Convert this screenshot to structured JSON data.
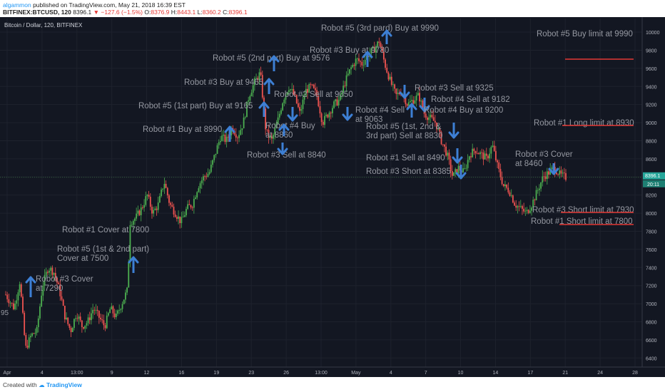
{
  "header": {
    "author": "algammon",
    "published": "published on TradingView.com, May 21, 2018 16:39 EST",
    "symbol": "BITFINEX:BTCUSD, 120",
    "last": "8396.1",
    "change": "−127.6 (−1.5%)",
    "ohlc_o_label": "O:",
    "ohlc_o": "8376.9",
    "ohlc_h_label": "H:",
    "ohlc_h": "8443.1",
    "ohlc_l_label": "L:",
    "ohlc_l": "8360.2",
    "ohlc_c_label": "C:",
    "ohlc_c": "8396.1"
  },
  "footer": {
    "created_with": "Created with",
    "brand": "TradingView"
  },
  "chart_data": {
    "type": "candlestick",
    "title": "Bitcoin / Dollar, 120, BITFINEX",
    "ylim": [
      6300,
      10150
    ],
    "y_ticks": [
      6400,
      6600,
      6800,
      7000,
      7200,
      7400,
      7600,
      7800,
      8000,
      8200,
      8400,
      8600,
      8800,
      9000,
      9200,
      9400,
      9600,
      9800,
      10000
    ],
    "x_tick_labels": [
      "Apr",
      "4",
      "13:00",
      "9",
      "12",
      "16",
      "19",
      "23",
      "26",
      "13:00",
      "May",
      "4",
      "7",
      "10",
      "14",
      "17",
      "21",
      "24",
      "28"
    ],
    "last_price": {
      "value": "8396.1",
      "timer": "20:11"
    },
    "price_path": [
      [
        0,
        7100
      ],
      [
        3,
        6950
      ],
      [
        5,
        7250
      ],
      [
        7,
        6500
      ],
      [
        9,
        6650
      ],
      [
        11,
        6700
      ],
      [
        13,
        7200
      ],
      [
        15,
        7400
      ],
      [
        17,
        7350
      ],
      [
        19,
        7150
      ],
      [
        21,
        6850
      ],
      [
        23,
        6700
      ],
      [
        25,
        6900
      ],
      [
        27,
        6750
      ],
      [
        29,
        6800
      ],
      [
        31,
        6950
      ],
      [
        33,
        6850
      ],
      [
        35,
        6750
      ],
      [
        37,
        6950
      ],
      [
        39,
        6850
      ],
      [
        41,
        7000
      ],
      [
        43,
        7150
      ],
      [
        44,
        7900
      ],
      [
        46,
        7950
      ],
      [
        48,
        8050
      ],
      [
        50,
        8200
      ],
      [
        52,
        8000
      ],
      [
        54,
        8100
      ],
      [
        56,
        8350
      ],
      [
        58,
        8100
      ],
      [
        60,
        8000
      ],
      [
        62,
        7900
      ],
      [
        64,
        8050
      ],
      [
        66,
        8100
      ],
      [
        68,
        8300
      ],
      [
        70,
        8400
      ],
      [
        72,
        8450
      ],
      [
        74,
        8650
      ],
      [
        76,
        8850
      ],
      [
        78,
        8800
      ],
      [
        80,
        8950
      ],
      [
        82,
        8850
      ],
      [
        84,
        9000
      ],
      [
        86,
        9300
      ],
      [
        88,
        9450
      ],
      [
        90,
        9550
      ],
      [
        92,
        8900
      ],
      [
        94,
        8800
      ],
      [
        96,
        9000
      ],
      [
        98,
        9250
      ],
      [
        100,
        9400
      ],
      [
        102,
        9300
      ],
      [
        104,
        9100
      ],
      [
        106,
        9350
      ],
      [
        108,
        9400
      ],
      [
        110,
        9300
      ],
      [
        112,
        9000
      ],
      [
        114,
        9100
      ],
      [
        116,
        9200
      ],
      [
        118,
        9250
      ],
      [
        120,
        9450
      ],
      [
        122,
        9600
      ],
      [
        124,
        9700
      ],
      [
        126,
        9650
      ],
      [
        128,
        9750
      ],
      [
        130,
        9800
      ],
      [
        132,
        9900
      ],
      [
        134,
        9650
      ],
      [
        136,
        9450
      ],
      [
        138,
        9300
      ],
      [
        140,
        9350
      ],
      [
        142,
        9200
      ],
      [
        144,
        9250
      ],
      [
        146,
        9300
      ],
      [
        148,
        9100
      ],
      [
        150,
        9050
      ],
      [
        152,
        9000
      ],
      [
        154,
        8800
      ],
      [
        156,
        8650
      ],
      [
        158,
        8400
      ],
      [
        160,
        8500
      ],
      [
        162,
        8450
      ],
      [
        164,
        8650
      ],
      [
        166,
        8700
      ],
      [
        168,
        8650
      ],
      [
        170,
        8600
      ],
      [
        172,
        8750
      ],
      [
        174,
        8500
      ],
      [
        176,
        8300
      ],
      [
        178,
        8250
      ],
      [
        180,
        8100
      ],
      [
        182,
        8050
      ],
      [
        184,
        8000
      ],
      [
        186,
        8100
      ],
      [
        188,
        8250
      ],
      [
        190,
        8400
      ],
      [
        192,
        8450
      ],
      [
        194,
        8500
      ],
      [
        196,
        8420
      ],
      [
        198,
        8396
      ]
    ],
    "annotations": [
      {
        "label": "Robot #3 Cover\nat 7290",
        "arrow": "up",
        "price": 7290
      },
      {
        "label": "Robot #5 (1st & 2nd part)\nCover at 7500",
        "arrow": "up",
        "price": 7500
      },
      {
        "label": "Robot #1 Cover at 7800",
        "arrow": "none",
        "price": 7800
      },
      {
        "label": "Robot #1 Buy at 8990",
        "arrow": "up",
        "price": 8990
      },
      {
        "label": "Robot #5 (1st part) Buy at 9165",
        "arrow": "up",
        "price": 9165
      },
      {
        "label": "Robot #3 Buy at 9465",
        "arrow": "up",
        "price": 9465
      },
      {
        "label": "Robot #5 (2nd part) Buy at 9576",
        "arrow": "up",
        "price": 9576
      },
      {
        "label": "Robot #2 Sell at 9050",
        "arrow": "down",
        "price": 9050
      },
      {
        "label": "Robot #3 Sell at 8840",
        "arrow": "down",
        "price": 8840
      },
      {
        "label": "Robot #4 Buy\nat 8860",
        "arrow": "up",
        "price": 8860
      },
      {
        "label": "Robot #3 Buy at 9780",
        "arrow": "up",
        "price": 9780
      },
      {
        "label": "Robot #5 (3rd pard) Buy at 9990",
        "arrow": "up",
        "price": 9990
      },
      {
        "label": "Robot #4 Sell\nat 9063",
        "arrow": "down",
        "price": 9063
      },
      {
        "label": "Robot #3 Sell at 9325",
        "arrow": "down",
        "price": 9325
      },
      {
        "label": "Robot #4 Sell at 9182",
        "arrow": "down",
        "price": 9182
      },
      {
        "label": "Robot #4 Buy at 9200",
        "arrow": "up",
        "price": 9200
      },
      {
        "label": "Robot #5 (1st, 2nd &\n3rd part) Sell at 8830",
        "arrow": "down",
        "price": 8830
      },
      {
        "label": "Robot #1 Sell at 8490",
        "arrow": "down",
        "price": 8490
      },
      {
        "label": "Robot #3 Short at 8385",
        "arrow": "down",
        "price": 8385
      },
      {
        "label": "Robot #3 Cover\nat 8460",
        "arrow": "down",
        "price": 8460
      }
    ],
    "limits": [
      {
        "label": "Robot #5 Buy limit at 9990",
        "price": 9990
      },
      {
        "label": "Robot #1 Long limit at 8930",
        "price": 8930
      },
      {
        "label": "Robot #3 Short limit at 7930",
        "price": 7930
      },
      {
        "label": "Robot #1 Short limit at 7800",
        "price": 7800
      }
    ],
    "edge_label": "95"
  }
}
